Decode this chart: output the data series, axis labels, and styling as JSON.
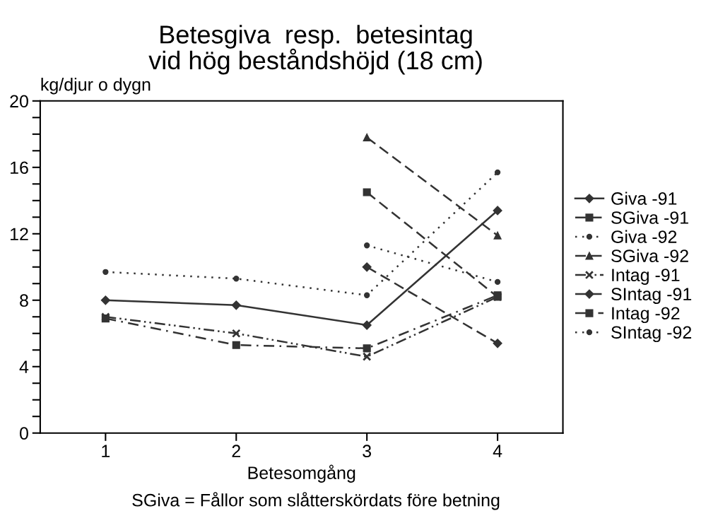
{
  "chart_data": {
    "type": "line",
    "title": "Betesgiva  resp.  betesintag\nvid hög beståndshöjd (18 cm)",
    "xlabel": "Betesomgång",
    "ylabel": "kg/djur o dygn",
    "annotations": [
      "SGiva = Fållor som slåtterskördats före betning"
    ],
    "x": [
      1,
      2,
      3,
      4
    ],
    "xlim": [
      0.5,
      4.5
    ],
    "xticks": [
      1,
      2,
      3,
      4
    ],
    "ylim": [
      0,
      20
    ],
    "yticks": [
      0,
      {
        "value": 1,
        "label": null
      },
      {
        "value": 2,
        "label": null
      },
      {
        "value": 3,
        "label": null
      },
      4,
      {
        "value": 5,
        "label": null
      },
      {
        "value": 6,
        "label": null
      },
      {
        "value": 7,
        "label": null
      },
      8,
      {
        "value": 9,
        "label": null
      },
      {
        "value": 10,
        "label": null
      },
      {
        "value": 11,
        "label": null
      },
      12,
      {
        "value": 13,
        "label": null
      },
      {
        "value": 14,
        "label": null
      },
      {
        "value": 15,
        "label": null
      },
      16,
      {
        "value": 17,
        "label": null
      },
      {
        "value": 18,
        "label": null
      },
      {
        "value": 19,
        "label": null
      },
      20
    ],
    "grid": false,
    "legend": "right",
    "series": [
      {
        "name": "Giva -91",
        "color": "#333333",
        "values": [
          8.0,
          7.7,
          6.5,
          13.4
        ],
        "marker": "diamond",
        "line_style": "solid"
      },
      {
        "name": "SGiva -91",
        "color": "#333333",
        "values": [
          null,
          null,
          14.5,
          8.2
        ],
        "marker": "square",
        "line_style": "dashed"
      },
      {
        "name": "Giva -92",
        "color": "#333333",
        "values": [
          9.7,
          9.3,
          8.3,
          15.7
        ],
        "marker": "circle",
        "line_style": "dotted"
      },
      {
        "name": "SGiva -92",
        "color": "#333333",
        "values": [
          null,
          null,
          17.8,
          11.9
        ],
        "marker": "triangle",
        "line_style": "dashed"
      },
      {
        "name": "Intag -91",
        "color": "#333333",
        "values": [
          7.0,
          6.0,
          4.6,
          8.2
        ],
        "marker": "cross",
        "line_style": "dashdotdot"
      },
      {
        "name": "SIntag -91",
        "color": "#333333",
        "values": [
          null,
          null,
          10.0,
          5.4
        ],
        "marker": "diamond",
        "line_style": "dashed"
      },
      {
        "name": "Intag -92",
        "color": "#333333",
        "values": [
          6.9,
          5.3,
          5.1,
          8.3
        ],
        "marker": "square",
        "line_style": "dashdot"
      },
      {
        "name": "SIntag -92",
        "color": "#333333",
        "values": [
          null,
          null,
          11.3,
          9.1
        ],
        "marker": "circle",
        "line_style": "dotted"
      }
    ]
  }
}
